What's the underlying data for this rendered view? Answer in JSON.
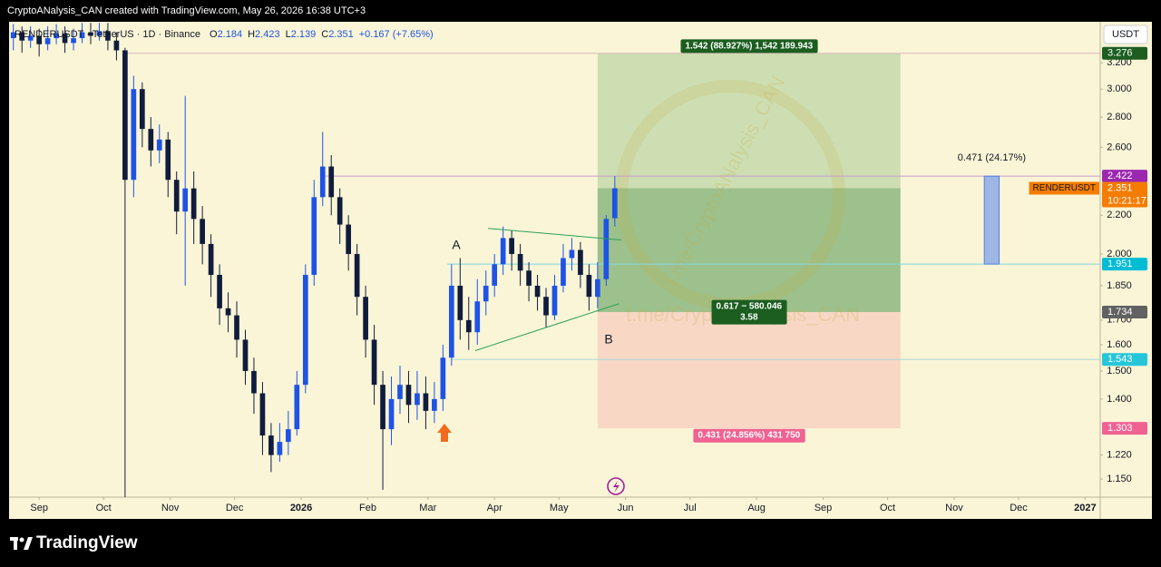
{
  "header": "CryptoANalysis_CAN created with TradingView.com, May 26, 2026 16:38 UTC+3",
  "footer_logo": "TradingView",
  "watermark": "t.me/CryptoANalysis_CAN",
  "chart_data": {
    "type": "candlestick",
    "symbol": "RENDERUSDT · TetherUS · 1D · Binance",
    "legend": [
      {
        "key": "O",
        "value": 2.184
      },
      {
        "key": "H",
        "value": 2.423
      },
      {
        "key": "L",
        "value": 2.139
      },
      {
        "key": "C",
        "value": 2.351
      }
    ],
    "change": "+0.167 (+7.65%)",
    "currency": "USDT",
    "ticker_label": "RENDERUSDT",
    "countdown": "10:21:17",
    "log_scale": true,
    "grid": false,
    "up_color": "#1e53e5",
    "down_color": "#101c3c",
    "xlim": [
      -14,
      494
    ],
    "xticks": [
      {
        "value": 0,
        "label": "Sep"
      },
      {
        "value": 30,
        "label": "Oct"
      },
      {
        "value": 61,
        "label": "Nov"
      },
      {
        "value": 91,
        "label": "Dec"
      },
      {
        "value": 122,
        "label": "2026"
      },
      {
        "value": 153,
        "label": "Feb"
      },
      {
        "value": 181,
        "label": "Mar"
      },
      {
        "value": 212,
        "label": "Apr"
      },
      {
        "value": 242,
        "label": "May"
      },
      {
        "value": 273,
        "label": "Jun"
      },
      {
        "value": 303,
        "label": "Jul"
      },
      {
        "value": 334,
        "label": "Aug"
      },
      {
        "value": 365,
        "label": "Sep"
      },
      {
        "value": 395,
        "label": "Oct"
      },
      {
        "value": 426,
        "label": "Nov"
      },
      {
        "value": 456,
        "label": "Dec"
      },
      {
        "value": 487,
        "label": "2027"
      }
    ],
    "ylim": [
      1.1,
      3.54
    ],
    "yticks": [
      {
        "value": 1.15,
        "label": "1.150"
      },
      {
        "value": 1.22,
        "label": "1.220"
      },
      {
        "value": 1.4,
        "label": "1.400"
      },
      {
        "value": 1.5,
        "label": "1.500"
      },
      {
        "value": 1.6,
        "label": "1.600"
      },
      {
        "value": 1.7,
        "label": "1.700"
      },
      {
        "value": 1.85,
        "label": "1.850"
      },
      {
        "value": 2.0,
        "label": "2.000"
      },
      {
        "value": 2.2,
        "label": "2.200"
      },
      {
        "value": 2.6,
        "label": "2.600"
      },
      {
        "value": 2.8,
        "label": "2.800"
      },
      {
        "value": 3.0,
        "label": "3.000"
      },
      {
        "value": 3.2,
        "label": "3.200"
      }
    ],
    "x": [
      -12,
      -8,
      -4,
      0,
      4,
      8,
      12,
      16,
      20,
      24,
      28,
      32,
      36,
      40,
      44,
      48,
      52,
      56,
      60,
      64,
      68,
      72,
      76,
      80,
      84,
      88,
      92,
      96,
      100,
      104,
      108,
      112,
      116,
      120,
      124,
      128,
      132,
      136,
      140,
      144,
      148,
      152,
      156,
      160,
      164,
      168,
      172,
      176,
      180,
      184,
      188,
      192,
      196,
      200,
      204,
      208,
      212,
      216,
      220,
      224,
      228,
      232,
      236,
      240,
      244,
      248,
      252,
      256,
      260,
      264,
      268
    ],
    "open": [
      3.4,
      3.45,
      3.38,
      3.42,
      3.35,
      3.4,
      3.44,
      3.36,
      3.4,
      3.45,
      3.42,
      3.46,
      3.38,
      3.3,
      2.4,
      3.0,
      2.72,
      2.58,
      2.65,
      2.4,
      2.22,
      2.35,
      2.18,
      2.05,
      1.9,
      1.75,
      1.72,
      1.62,
      1.5,
      1.42,
      1.28,
      1.22,
      1.26,
      1.3,
      1.45,
      1.9,
      2.3,
      2.48,
      2.3,
      2.15,
      2.0,
      1.8,
      1.62,
      1.45,
      1.3,
      1.4,
      1.45,
      1.38,
      1.42,
      1.36,
      1.4,
      1.55,
      1.85,
      1.7,
      1.65,
      1.78,
      1.85,
      1.95,
      2.08,
      2.0,
      1.92,
      1.85,
      1.8,
      1.72,
      1.85,
      1.98,
      2.02,
      1.9,
      1.8,
      1.88,
      2.184
    ],
    "high": [
      3.52,
      3.5,
      3.5,
      3.48,
      3.5,
      3.52,
      3.5,
      3.48,
      3.53,
      3.53,
      3.53,
      3.53,
      3.45,
      3.32,
      3.1,
      3.05,
      2.8,
      2.75,
      2.7,
      2.45,
      2.95,
      2.45,
      2.25,
      2.1,
      1.95,
      1.82,
      1.78,
      1.66,
      1.55,
      1.46,
      1.32,
      1.32,
      1.36,
      1.5,
      1.95,
      2.4,
      2.7,
      2.55,
      2.35,
      2.2,
      2.05,
      1.85,
      1.68,
      1.5,
      1.48,
      1.52,
      1.5,
      1.5,
      1.48,
      1.46,
      1.6,
      1.95,
      1.98,
      1.8,
      1.88,
      1.92,
      2.0,
      2.14,
      2.12,
      2.05,
      1.96,
      1.9,
      1.84,
      1.9,
      2.05,
      2.08,
      2.06,
      1.95,
      1.96,
      2.2,
      2.423
    ],
    "low": [
      3.3,
      3.28,
      3.32,
      3.25,
      3.3,
      3.35,
      3.28,
      3.3,
      3.36,
      3.35,
      3.38,
      3.3,
      3.22,
      1.1,
      2.3,
      2.6,
      2.48,
      2.5,
      2.3,
      2.1,
      1.85,
      2.05,
      1.95,
      1.8,
      1.68,
      1.65,
      1.55,
      1.45,
      1.35,
      1.22,
      1.17,
      1.2,
      1.22,
      1.28,
      1.42,
      1.85,
      2.25,
      2.2,
      2.05,
      1.92,
      1.72,
      1.55,
      1.38,
      1.12,
      1.25,
      1.35,
      1.32,
      1.33,
      1.3,
      1.32,
      1.36,
      1.52,
      1.62,
      1.58,
      1.6,
      1.72,
      1.8,
      1.9,
      1.92,
      1.85,
      1.78,
      1.74,
      1.67,
      1.7,
      1.82,
      1.92,
      1.84,
      1.74,
      1.75,
      1.85,
      2.139
    ],
    "close": [
      3.45,
      3.38,
      3.42,
      3.35,
      3.4,
      3.44,
      3.36,
      3.4,
      3.45,
      3.42,
      3.46,
      3.38,
      3.3,
      2.4,
      3.0,
      2.72,
      2.58,
      2.65,
      2.4,
      2.22,
      2.35,
      2.18,
      2.05,
      1.9,
      1.75,
      1.72,
      1.62,
      1.5,
      1.42,
      1.28,
      1.22,
      1.26,
      1.3,
      1.45,
      1.9,
      2.3,
      2.48,
      2.3,
      2.15,
      2.0,
      1.8,
      1.62,
      1.45,
      1.3,
      1.4,
      1.45,
      1.38,
      1.42,
      1.36,
      1.4,
      1.55,
      1.85,
      1.7,
      1.65,
      1.78,
      1.85,
      1.95,
      2.08,
      2.0,
      1.92,
      1.85,
      1.8,
      1.72,
      1.85,
      1.98,
      2.02,
      1.9,
      1.8,
      1.88,
      2.18,
      2.351
    ],
    "levels": [
      {
        "value": 3.276,
        "x_start": 39,
        "color": "#d9b9b9"
      },
      {
        "value": 2.422,
        "x_start": 133,
        "color": "#c79bd0"
      },
      {
        "value": 1.951,
        "x_start": 190,
        "color": "#7fd8e4"
      },
      {
        "value": 1.543,
        "x_start": 192,
        "color": "#a9d9de"
      }
    ],
    "trendlines": [
      {
        "x": [
          209,
          271
        ],
        "y": [
          2.13,
          2.07
        ],
        "color": "#2e9e5b"
      },
      {
        "x": [
          203,
          270
        ],
        "y": [
          1.577,
          1.77
        ],
        "color": "#2e9e5b"
      }
    ],
    "annotations": [
      "A",
      "B"
    ],
    "position": {
      "x_start": 260,
      "x_end": 401,
      "target": 3.276,
      "current": 2.351,
      "entry": 1.734,
      "stop": 1.303,
      "target_label": "1.542 (88.927%) 1,542 189.943",
      "mid_label": [
        "0.617 − 580.046",
        "3.58"
      ],
      "stop_label": "0.431 (24.856%) 431 750"
    },
    "measure": {
      "x_start": 440,
      "x_end": 447,
      "from": 1.951,
      "to": 2.422,
      "label": "0.471 (24.17%)",
      "color": "#9db6e6"
    },
    "price_labels": [
      {
        "value": 3.276,
        "color": "#1b5e20"
      },
      {
        "value": 2.422,
        "color": "#9c27b0"
      },
      {
        "value": 2.351,
        "color": "#f57c00"
      },
      {
        "value": 1.951,
        "color": "#00bcd4"
      },
      {
        "value": 1.734,
        "color": "#616161"
      },
      {
        "value": 1.543,
        "color": "#26c6da"
      },
      {
        "value": 1.303,
        "color": "#f06292"
      }
    ]
  }
}
